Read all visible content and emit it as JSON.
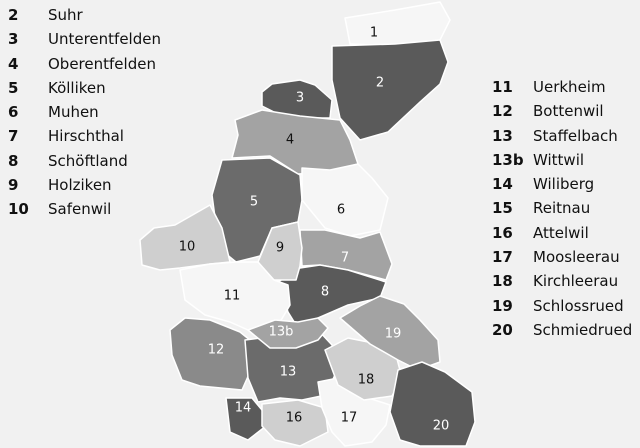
{
  "colors": {
    "background": "#f1f1f1",
    "white": "#f6f6f6",
    "light": "#cfcfcf",
    "mid": "#a3a3a3",
    "midDark": "#8a8a8a",
    "dark": "#6b6b6b",
    "darker": "#5a5a5a",
    "labelDark": "#111111",
    "labelLight": "#ffffff"
  },
  "legend_left": [
    {
      "num": "2",
      "name": "Suhr"
    },
    {
      "num": "3",
      "name": "Unterentfelden"
    },
    {
      "num": "4",
      "name": "Oberentfelden"
    },
    {
      "num": "5",
      "name": "Kölliken"
    },
    {
      "num": "6",
      "name": "Muhen"
    },
    {
      "num": "7",
      "name": "Hirschthal"
    },
    {
      "num": "8",
      "name": "Schöftland"
    },
    {
      "num": "9",
      "name": "Holziken"
    },
    {
      "num": "10",
      "name": "Safenwil"
    }
  ],
  "legend_right": [
    {
      "num": "11",
      "name": "Uerkheim"
    },
    {
      "num": "12",
      "name": "Bottenwil"
    },
    {
      "num": "13",
      "name": "Staffelbach"
    },
    {
      "num": "13b",
      "name": "Wittwil"
    },
    {
      "num": "14",
      "name": "Wiliberg"
    },
    {
      "num": "15",
      "name": "Reitnau"
    },
    {
      "num": "16",
      "name": "Attelwil"
    },
    {
      "num": "17",
      "name": "Moosleerau"
    },
    {
      "num": "18",
      "name": "Kirchleerau"
    },
    {
      "num": "19",
      "name": "Schlossrued"
    },
    {
      "num": "20",
      "name": "Schmiedrued"
    }
  ],
  "regions": [
    {
      "id": "1",
      "label": "1",
      "shade": "white",
      "text": "labelDark"
    },
    {
      "id": "2",
      "label": "2",
      "shade": "darker",
      "text": "labelLight"
    },
    {
      "id": "3",
      "label": "3",
      "shade": "darker",
      "text": "labelLight"
    },
    {
      "id": "4",
      "label": "4",
      "shade": "mid",
      "text": "labelDark"
    },
    {
      "id": "5",
      "label": "5",
      "shade": "dark",
      "text": "labelLight"
    },
    {
      "id": "6",
      "label": "6",
      "shade": "white",
      "text": "labelDark"
    },
    {
      "id": "7",
      "label": "7",
      "shade": "mid",
      "text": "labelLight"
    },
    {
      "id": "8",
      "label": "8",
      "shade": "darker",
      "text": "labelLight"
    },
    {
      "id": "9",
      "label": "9",
      "shade": "light",
      "text": "labelDark"
    },
    {
      "id": "10",
      "label": "10",
      "shade": "light",
      "text": "labelDark"
    },
    {
      "id": "11",
      "label": "11",
      "shade": "white",
      "text": "labelDark"
    },
    {
      "id": "12",
      "label": "12",
      "shade": "midDark",
      "text": "labelLight"
    },
    {
      "id": "13",
      "label": "13",
      "shade": "dark",
      "text": "labelLight"
    },
    {
      "id": "13b",
      "label": "13b",
      "shade": "mid",
      "text": "labelLight"
    },
    {
      "id": "14",
      "label": "14",
      "shade": "darker",
      "text": "labelLight"
    },
    {
      "id": "16",
      "label": "16",
      "shade": "light",
      "text": "labelDark"
    },
    {
      "id": "17",
      "label": "17",
      "shade": "white",
      "text": "labelDark"
    },
    {
      "id": "18",
      "label": "18",
      "shade": "light",
      "text": "labelDark"
    },
    {
      "id": "19",
      "label": "19",
      "shade": "mid",
      "text": "labelLight"
    },
    {
      "id": "20",
      "label": "20",
      "shade": "darker",
      "text": "labelLight"
    }
  ]
}
